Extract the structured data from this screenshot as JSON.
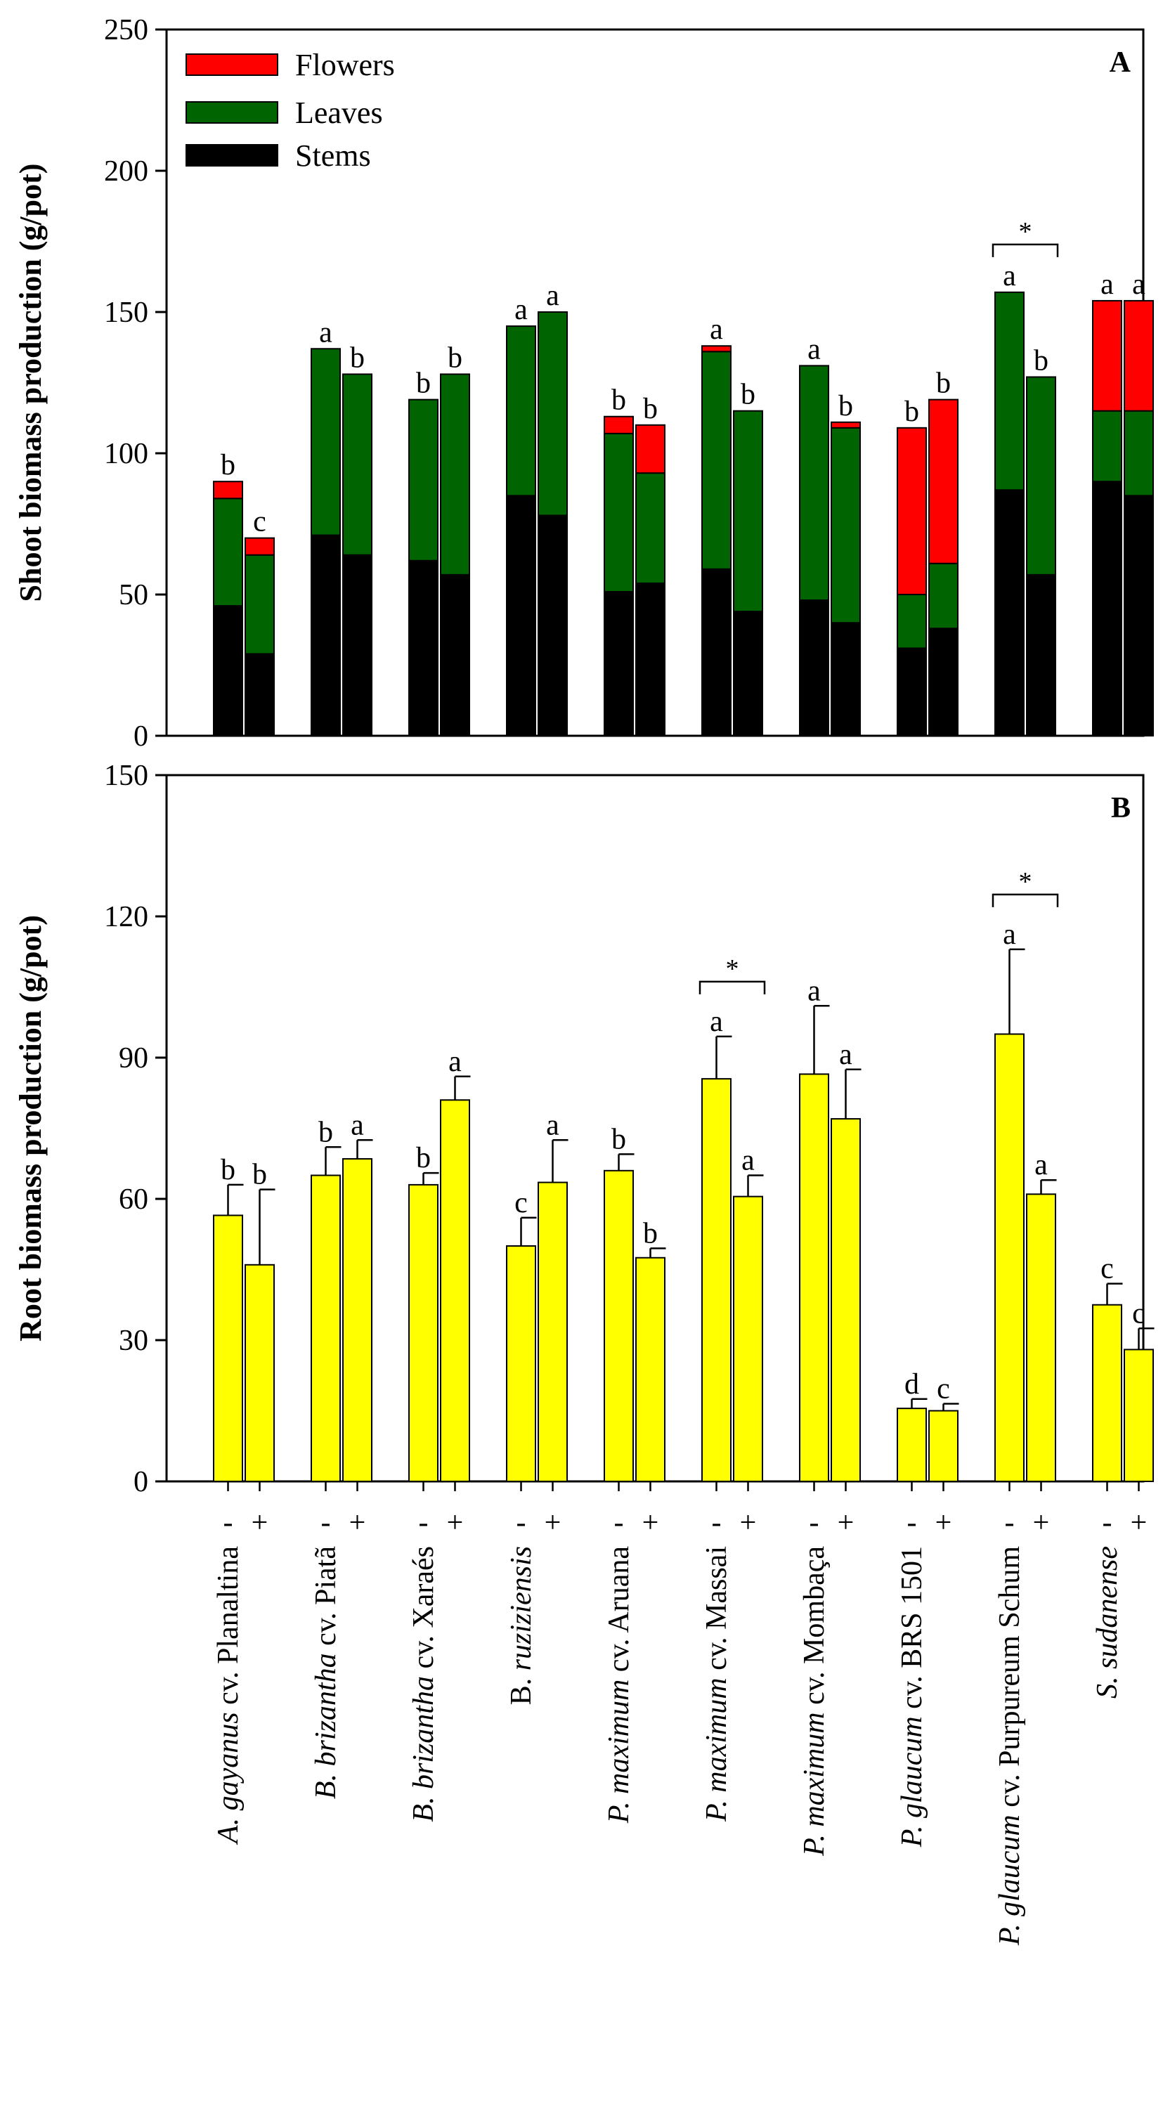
{
  "chart_data": [
    {
      "panel": "A",
      "type": "bar",
      "stacked": true,
      "ylabel": "Shoot biomass production (g/pot)",
      "ylim": [
        0,
        250
      ],
      "yticks": [
        0,
        50,
        100,
        150,
        200,
        250
      ],
      "grid": false,
      "legend": {
        "placement": "top-left",
        "entries": [
          {
            "label": "Flowers",
            "color": "#ff0000"
          },
          {
            "label": "Leaves",
            "color": "#006400"
          },
          {
            "label": "Stems",
            "color": "#000000"
          }
        ]
      },
      "groups": [
        {
          "bars": [
            {
              "stems": 46,
              "leaves": 38,
              "flowers": 6,
              "letter": "b"
            },
            {
              "stems": 29,
              "leaves": 35,
              "flowers": 6,
              "letter": "c"
            }
          ]
        },
        {
          "bars": [
            {
              "stems": 71,
              "leaves": 66,
              "flowers": 0,
              "letter": "a"
            },
            {
              "stems": 64,
              "leaves": 64,
              "flowers": 0,
              "letter": "b"
            }
          ]
        },
        {
          "bars": [
            {
              "stems": 62,
              "leaves": 57,
              "flowers": 0,
              "letter": "b"
            },
            {
              "stems": 57,
              "leaves": 71,
              "flowers": 0,
              "letter": "b"
            }
          ]
        },
        {
          "bars": [
            {
              "stems": 85,
              "leaves": 60,
              "flowers": 0,
              "letter": "a"
            },
            {
              "stems": 78,
              "leaves": 72,
              "flowers": 0,
              "letter": "a"
            }
          ]
        },
        {
          "bars": [
            {
              "stems": 51,
              "leaves": 56,
              "flowers": 6,
              "letter": "b"
            },
            {
              "stems": 54,
              "leaves": 39,
              "flowers": 17,
              "letter": "b"
            }
          ]
        },
        {
          "bars": [
            {
              "stems": 59,
              "leaves": 77,
              "flowers": 2,
              "letter": "a"
            },
            {
              "stems": 44,
              "leaves": 71,
              "flowers": 0,
              "letter": "b"
            }
          ]
        },
        {
          "bars": [
            {
              "stems": 48,
              "leaves": 83,
              "flowers": 0,
              "letter": "a"
            },
            {
              "stems": 40,
              "leaves": 69,
              "flowers": 2,
              "letter": "b"
            }
          ]
        },
        {
          "bars": [
            {
              "stems": 31,
              "leaves": 19,
              "flowers": 59,
              "letter": "b"
            },
            {
              "stems": 38,
              "leaves": 23,
              "flowers": 58,
              "letter": "b"
            }
          ]
        },
        {
          "bars": [
            {
              "stems": 87,
              "leaves": 70,
              "flowers": 0,
              "letter": "a"
            },
            {
              "stems": 57,
              "leaves": 70,
              "flowers": 0,
              "letter": "b"
            }
          ],
          "star": true
        },
        {
          "bars": [
            {
              "stems": 90,
              "leaves": 25,
              "flowers": 39,
              "letter": "a"
            },
            {
              "stems": 85,
              "leaves": 30,
              "flowers": 39,
              "letter": "a"
            }
          ]
        }
      ],
      "significance_symbol": "*"
    },
    {
      "panel": "B",
      "type": "bar",
      "ylabel": "Root biomass production (g/pot)",
      "ylim": [
        0,
        150
      ],
      "yticks": [
        0,
        30,
        60,
        90,
        120,
        150
      ],
      "grid": false,
      "bar_color": "#ffff00",
      "categories": [
        [
          {
            "text": "A. gayanus",
            "italic": true
          },
          {
            "text": " cv. Planaltina",
            "italic": false
          }
        ],
        [
          {
            "text": "B. brizantha",
            "italic": true
          },
          {
            "text": " cv. Piatã",
            "italic": false
          }
        ],
        [
          {
            "text": "B. brizantha",
            "italic": true
          },
          {
            "text": " cv. Xaraés",
            "italic": false
          }
        ],
        [
          {
            "text": "B.",
            "italic": false
          },
          {
            "text": " ruziziensis",
            "italic": true
          }
        ],
        [
          {
            "text": "P. maximum",
            "italic": true
          },
          {
            "text": " cv. Aruana",
            "italic": false
          }
        ],
        [
          {
            "text": "P. maximum",
            "italic": true
          },
          {
            "text": " cv. Massai",
            "italic": false
          }
        ],
        [
          {
            "text": "P. maximum",
            "italic": true
          },
          {
            "text": " cv. Mombaça",
            "italic": false
          }
        ],
        [
          {
            "text": "P. glaucum",
            "italic": true
          },
          {
            "text": " cv. BRS 1501",
            "italic": false
          }
        ],
        [
          {
            "text": "P. glaucum",
            "italic": true
          },
          {
            "text": " cv. Purpureum Schum",
            "italic": false
          }
        ],
        [
          {
            "text": "S. sudanense",
            "italic": true
          }
        ]
      ],
      "treatment_labels": [
        "-",
        "+"
      ],
      "groups": [
        {
          "bars": [
            {
              "value": 56.5,
              "error": 6.5,
              "letter": "b"
            },
            {
              "value": 46,
              "error": 16,
              "letter": "b"
            }
          ]
        },
        {
          "bars": [
            {
              "value": 65,
              "error": 6,
              "letter": "b"
            },
            {
              "value": 68.5,
              "error": 4,
              "letter": "a"
            }
          ]
        },
        {
          "bars": [
            {
              "value": 63,
              "error": 2.5,
              "letter": "b"
            },
            {
              "value": 81,
              "error": 5,
              "letter": "a"
            }
          ]
        },
        {
          "bars": [
            {
              "value": 50,
              "error": 6,
              "letter": "c"
            },
            {
              "value": 63.5,
              "error": 9,
              "letter": "a"
            }
          ]
        },
        {
          "bars": [
            {
              "value": 66,
              "error": 3.5,
              "letter": "b"
            },
            {
              "value": 47.5,
              "error": 2,
              "letter": "b"
            }
          ]
        },
        {
          "bars": [
            {
              "value": 85.5,
              "error": 9,
              "letter": "a"
            },
            {
              "value": 60.5,
              "error": 4.5,
              "letter": "a"
            }
          ],
          "star": true
        },
        {
          "bars": [
            {
              "value": 86.5,
              "error": 14.5,
              "letter": "a"
            },
            {
              "value": 77,
              "error": 10.5,
              "letter": "a"
            }
          ]
        },
        {
          "bars": [
            {
              "value": 15.5,
              "error": 2,
              "letter": "d"
            },
            {
              "value": 15,
              "error": 1.5,
              "letter": "c"
            }
          ]
        },
        {
          "bars": [
            {
              "value": 95,
              "error": 18,
              "letter": "a"
            },
            {
              "value": 61,
              "error": 3,
              "letter": "a"
            }
          ],
          "star": true
        },
        {
          "bars": [
            {
              "value": 37.5,
              "error": 4.5,
              "letter": "c"
            },
            {
              "value": 28,
              "error": 4.5,
              "letter": "c"
            }
          ]
        }
      ],
      "significance_symbol": "*"
    }
  ]
}
